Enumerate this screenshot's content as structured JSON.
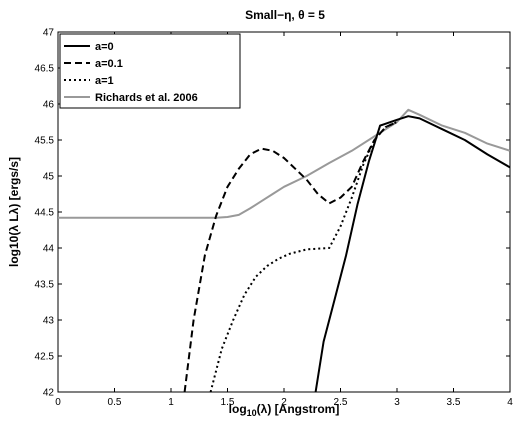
{
  "chart_data": {
    "type": "line",
    "title": "Small−η, θ = 5",
    "xlabel": "log10(λ) [Angstrom]",
    "ylabel": "log10(λ Lλ) [ergs/s]",
    "xlim": [
      0,
      4
    ],
    "ylim": [
      42,
      47
    ],
    "x_ticks": [
      "0",
      "0.5",
      "1",
      "1.5",
      "2",
      "2.5",
      "3",
      "3.5",
      "4"
    ],
    "y_ticks": [
      "42",
      "42.5",
      "43",
      "43.5",
      "44",
      "44.5",
      "45",
      "45.5",
      "46",
      "46.5",
      "47"
    ],
    "grid": false,
    "legend_position": "top-left",
    "series": [
      {
        "name": "a=0",
        "color": "#000000",
        "style": "solid",
        "x": [
          2.28,
          2.35,
          2.45,
          2.55,
          2.65,
          2.75,
          2.85,
          3.0,
          3.1,
          3.2,
          3.4,
          3.6,
          3.8,
          4.0
        ],
        "y": [
          42.0,
          42.7,
          43.3,
          43.9,
          44.6,
          45.2,
          45.7,
          45.78,
          45.83,
          45.8,
          45.65,
          45.5,
          45.3,
          45.12
        ]
      },
      {
        "name": "a=0.1",
        "color": "#000000",
        "style": "dashed",
        "x": [
          1.12,
          1.2,
          1.3,
          1.4,
          1.5,
          1.6,
          1.7,
          1.8,
          1.9,
          2.0,
          2.1,
          2.2,
          2.3,
          2.4,
          2.5,
          2.6,
          2.7,
          2.8,
          2.9,
          3.0
        ],
        "y": [
          42.0,
          43.0,
          43.9,
          44.45,
          44.85,
          45.1,
          45.3,
          45.38,
          45.35,
          45.25,
          45.1,
          44.95,
          44.75,
          44.62,
          44.7,
          44.85,
          45.2,
          45.5,
          45.68,
          45.75
        ]
      },
      {
        "name": "a=1",
        "color": "#000000",
        "style": "dotted",
        "x": [
          1.35,
          1.45,
          1.55,
          1.65,
          1.75,
          1.85,
          1.95,
          2.05,
          2.2,
          2.4,
          2.5,
          2.6,
          2.7,
          2.8,
          2.9,
          3.0
        ],
        "y": [
          42.0,
          42.6,
          43.0,
          43.35,
          43.6,
          43.75,
          43.85,
          43.92,
          43.98,
          44.0,
          44.3,
          44.7,
          45.15,
          45.5,
          45.68,
          45.75
        ]
      },
      {
        "name": "Richards et al. 2006",
        "color": "#999999",
        "style": "solid",
        "x": [
          0,
          0.5,
          1.0,
          1.4,
          1.5,
          1.6,
          1.7,
          1.8,
          1.9,
          2.0,
          2.2,
          2.4,
          2.6,
          2.8,
          3.0,
          3.1,
          3.2,
          3.4,
          3.6,
          3.8,
          4.0
        ],
        "y": [
          44.42,
          44.42,
          44.42,
          44.42,
          44.43,
          44.46,
          44.55,
          44.65,
          44.75,
          44.85,
          45.0,
          45.18,
          45.35,
          45.55,
          45.75,
          45.92,
          45.85,
          45.7,
          45.6,
          45.45,
          45.35
        ]
      }
    ]
  }
}
